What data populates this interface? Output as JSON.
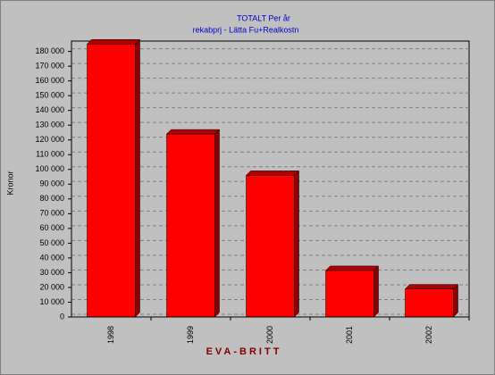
{
  "chart_data": {
    "type": "bar",
    "title": "TOTALT Per år",
    "subtitle": "rekabprj - Lätta Fu+Realkostn",
    "x_label": "EVA-BRITT",
    "y_label": "Kronor",
    "categories": [
      "1998",
      "1999",
      "2000",
      "2001",
      "2002"
    ],
    "values": [
      185000,
      124000,
      96000,
      31500,
      19000
    ],
    "color": "#ff0000",
    "ylim": [
      0,
      187000
    ],
    "yticks": [
      0,
      {
        "value": 10000,
        "label": "10 000"
      },
      {
        "value": 20000,
        "label": "20 000"
      },
      {
        "value": 30000,
        "label": "30 000"
      },
      {
        "value": 40000,
        "label": "40 000"
      },
      {
        "value": 50000,
        "label": "50 000"
      },
      {
        "value": 60000,
        "label": "60 000"
      },
      {
        "value": 70000,
        "label": "70 000"
      },
      {
        "value": 80000,
        "label": "80 000"
      },
      {
        "value": 90000,
        "label": "90 000"
      },
      {
        "value": 100000,
        "label": "100 000"
      },
      {
        "value": 110000,
        "label": "110 000"
      },
      {
        "value": 120000,
        "label": "120 000"
      },
      {
        "value": 130000,
        "label": "130 000"
      },
      {
        "value": 140000,
        "label": "140 000"
      },
      {
        "value": 150000,
        "label": "150 000"
      },
      {
        "value": 160000,
        "label": "160 000"
      },
      {
        "value": 170000,
        "label": "170 000"
      },
      {
        "value": 180000,
        "label": "180 000"
      }
    ],
    "grid": true
  }
}
